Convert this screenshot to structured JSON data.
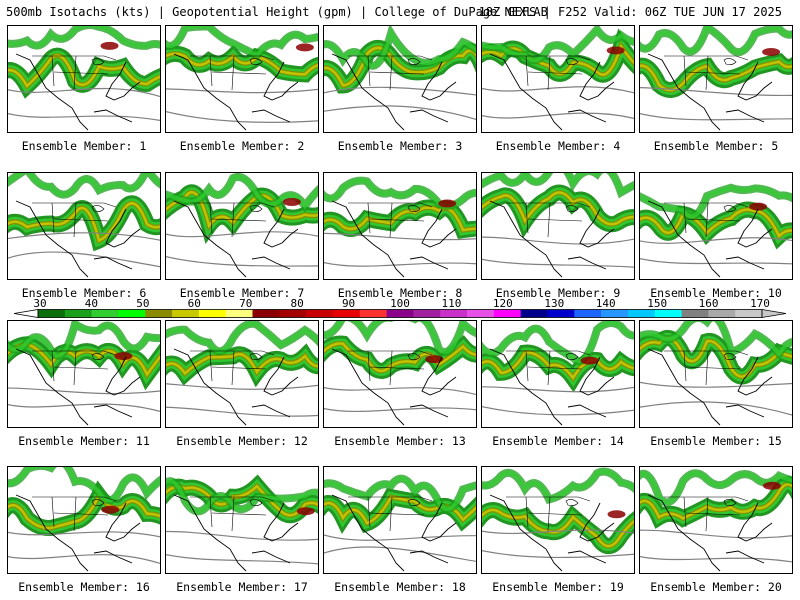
{
  "header": {
    "left": "500mb Isotachs (kts) | Geopotential Height (gpm) | College of DuPage NEXLAB",
    "right": "18Z GEFS | F252 Valid: 06Z TUE JUN 17 2025"
  },
  "members": [
    "Ensemble Member: 1",
    "Ensemble Member: 2",
    "Ensemble Member: 3",
    "Ensemble Member: 4",
    "Ensemble Member: 5",
    "Ensemble Member: 6",
    "Ensemble Member: 7",
    "Ensemble Member: 8",
    "Ensemble Member: 9",
    "Ensemble Member: 10",
    "Ensemble Member: 11",
    "Ensemble Member: 12",
    "Ensemble Member: 13",
    "Ensemble Member: 14",
    "Ensemble Member: 15",
    "Ensemble Member: 16",
    "Ensemble Member: 17",
    "Ensemble Member: 18",
    "Ensemble Member: 19",
    "Ensemble Member: 20"
  ],
  "colorbar": {
    "labels": [
      "30",
      "40",
      "50",
      "60",
      "70",
      "80",
      "90",
      "100",
      "110",
      "120",
      "130",
      "140",
      "150",
      "160",
      "170"
    ],
    "colors": [
      "#0a6e0a",
      "#1aa01a",
      "#32cd32",
      "#00ff00",
      "#8b8b00",
      "#c8c800",
      "#ffff00",
      "#ffff80",
      "#8b0000",
      "#a50000",
      "#c80000",
      "#e60000",
      "#ff3030",
      "#8b008b",
      "#a020a0",
      "#c832c8",
      "#e650e6",
      "#ff00ff",
      "#00008b",
      "#0000cd",
      "#1e64ff",
      "#2896ff",
      "#00c8ff",
      "#00ffff",
      "#808080",
      "#a9a9a9",
      "#c8c8c8"
    ]
  }
}
